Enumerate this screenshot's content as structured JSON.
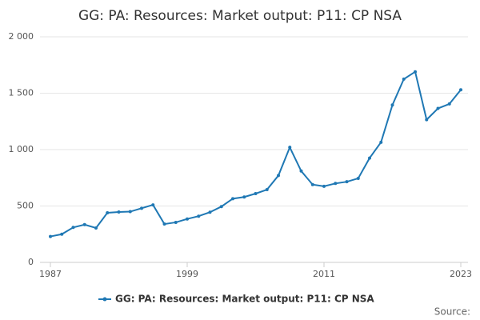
{
  "chart_data": {
    "type": "line",
    "title": "GG: PA: Resources: Market output: P11: CP NSA",
    "x": [
      1987,
      1988,
      1989,
      1990,
      1991,
      1992,
      1993,
      1994,
      1995,
      1996,
      1997,
      1998,
      1999,
      2000,
      2001,
      2002,
      2003,
      2004,
      2005,
      2006,
      2007,
      2008,
      2009,
      2010,
      2011,
      2012,
      2013,
      2014,
      2015,
      2016,
      2017,
      2018,
      2019,
      2020,
      2021,
      2022,
      2023
    ],
    "series": [
      {
        "name": "GG: PA: Resources: Market output: P11: CP NSA",
        "color": "#1f78b4",
        "values": [
          230,
          250,
          310,
          335,
          305,
          440,
          447,
          450,
          480,
          510,
          340,
          355,
          385,
          410,
          445,
          495,
          565,
          580,
          610,
          645,
          770,
          1020,
          810,
          690,
          675,
          700,
          715,
          745,
          925,
          1065,
          1395,
          1625,
          1690,
          1265,
          1365,
          1405,
          1530
        ]
      }
    ],
    "xlim": [
      1987,
      2023
    ],
    "xticks": [
      1987,
      1999,
      2011,
      2023
    ],
    "ylim": [
      0,
      2000
    ],
    "yticks": [
      0,
      500,
      {
        "value": 1000,
        "label": "1 000"
      },
      {
        "value": 1500,
        "label": "1 500"
      },
      {
        "value": 2000,
        "label": "2 000"
      }
    ],
    "grid": true,
    "source": "Source:"
  }
}
